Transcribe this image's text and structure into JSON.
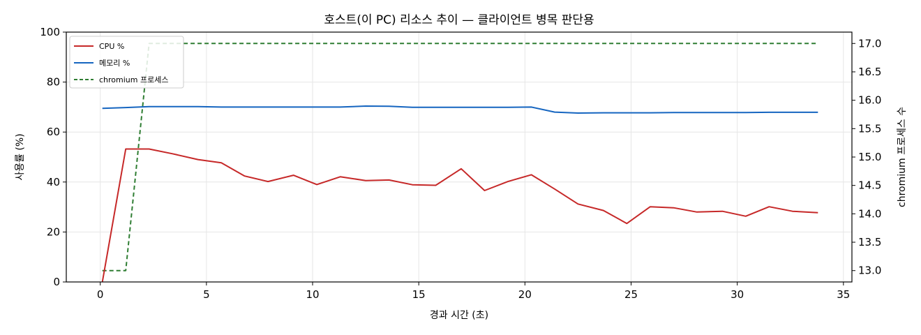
{
  "chart_data": {
    "type": "line",
    "title": "호스트(이 PC) 리소스 추이 — 클라이언트 병목 판단용",
    "xlabel": "경과 시간 (초)",
    "ylabel": "사용률 (%)",
    "y2label": "chromium 프로세스 수",
    "xlim": [
      -1.6,
      35.4
    ],
    "ylim": [
      0,
      100
    ],
    "y2lim": [
      12.8,
      17.2
    ],
    "xticks": [
      0,
      5,
      10,
      15,
      20,
      25,
      30,
      35
    ],
    "yticks": [
      0,
      20,
      40,
      60,
      80,
      100
    ],
    "y2ticks": [
      "13.0",
      "13.5",
      "14.0",
      "14.5",
      "15.0",
      "15.5",
      "16.0",
      "16.5",
      "17.0"
    ],
    "grid": true,
    "legend_position": "top-left",
    "x": [
      0.1,
      1.2,
      2.3,
      3.4,
      4.6,
      5.7,
      6.8,
      7.9,
      9.1,
      10.2,
      11.3,
      12.5,
      13.6,
      14.7,
      15.8,
      17.0,
      18.1,
      19.2,
      20.3,
      21.4,
      22.5,
      23.7,
      24.8,
      25.9,
      27.0,
      28.1,
      29.3,
      30.4,
      31.5,
      32.6,
      33.8
    ],
    "series": [
      {
        "name": "CPU %",
        "axis": "left",
        "color": "#c62828",
        "style": "solid",
        "values": [
          0,
          53.2,
          53.2,
          51.3,
          49.0,
          47.7,
          42.4,
          40.2,
          42.7,
          39.0,
          42.1,
          40.6,
          40.8,
          38.9,
          38.7,
          45.3,
          36.6,
          40.2,
          42.9,
          37.2,
          31.2,
          28.6,
          23.4,
          30.1,
          29.7,
          28.0,
          28.3,
          26.3,
          30.1,
          28.3,
          27.7
        ]
      },
      {
        "name": "메모리 %",
        "axis": "left",
        "color": "#1565c0",
        "style": "solid",
        "values": [
          69.5,
          69.8,
          70.2,
          70.2,
          70.2,
          70.0,
          70.0,
          70.0,
          70.0,
          70.0,
          70.0,
          70.4,
          70.3,
          69.9,
          69.9,
          69.9,
          69.9,
          69.9,
          70.0,
          68.0,
          67.6,
          67.7,
          67.7,
          67.7,
          67.8,
          67.8,
          67.8,
          67.8,
          67.9,
          67.9,
          67.9
        ]
      },
      {
        "name": "chromium 프로세스",
        "axis": "right",
        "color": "#2e7d32",
        "style": "dashed",
        "values": [
          13,
          13,
          17,
          17,
          17,
          17,
          17,
          17,
          17,
          17,
          17,
          17,
          17,
          17,
          17,
          17,
          17,
          17,
          17,
          17,
          17,
          17,
          17,
          17,
          17,
          17,
          17,
          17,
          17,
          17,
          17
        ]
      }
    ]
  }
}
